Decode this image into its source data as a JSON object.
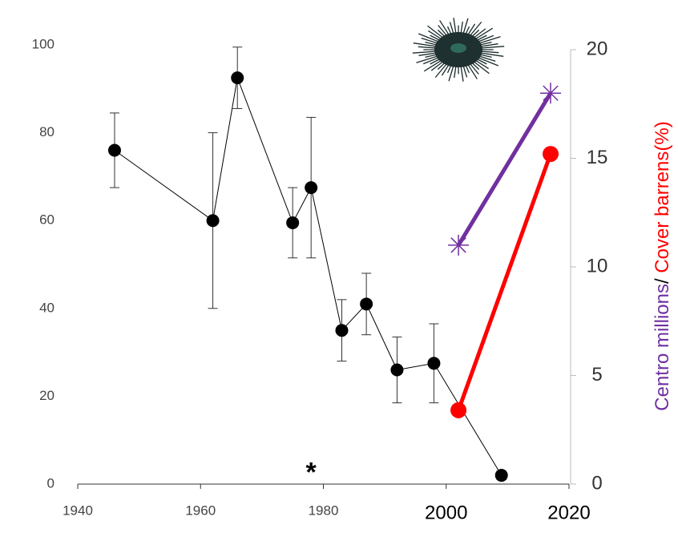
{
  "chart_data": {
    "type": "line",
    "xlim": [
      1940,
      2020
    ],
    "xticks": [
      1940,
      1960,
      1980,
      2000,
      2020
    ],
    "ylim": [
      0,
      100
    ],
    "yticks": [
      0,
      20,
      40,
      60,
      80,
      100
    ],
    "y2lim": [
      0,
      20
    ],
    "y2ticks": [
      0,
      5,
      10,
      15,
      20
    ],
    "y2label_parts": [
      {
        "text": "Centro millions",
        "color": "#7030a0"
      },
      {
        "text": "/ ",
        "color": "#000000"
      },
      {
        "text": "Cover barrens(%)",
        "color": "#ff0000"
      }
    ],
    "annotation": {
      "text": "*",
      "x": 1978,
      "y": 3
    },
    "series": [
      {
        "color": "#000000",
        "x": [
          1946,
          1962,
          1966,
          1975,
          1978,
          1983,
          1987,
          1992,
          1998,
          2009
        ],
        "values": [
          76,
          60,
          92.5,
          59.5,
          67.5,
          35,
          41,
          26,
          27.5,
          2
        ],
        "errors": [
          8.5,
          20,
          7,
          8,
          16,
          7,
          7,
          7.5,
          9,
          1
        ]
      },
      {
        "color": "#7030a0",
        "axis": "y2",
        "marker": "star",
        "x": [
          2002,
          2017
        ],
        "values": [
          11,
          18
        ]
      },
      {
        "color": "#ff0000",
        "axis": "y2",
        "marker": "dot",
        "x": [
          2002,
          2017
        ],
        "values": [
          3.4,
          15.2
        ]
      }
    ]
  }
}
